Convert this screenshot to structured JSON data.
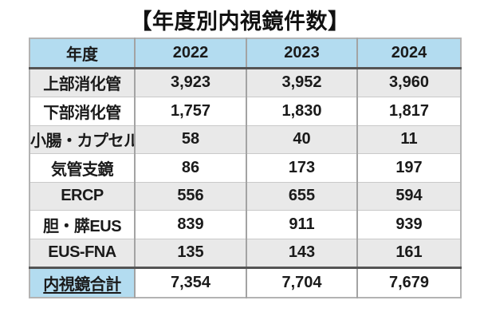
{
  "title": "【年度別内視鏡件数】",
  "colors": {
    "header_bg": "#b3dcf0",
    "alt_row_bg": "#e9e9e9",
    "heavy_rule": "#545454",
    "light_rule": "#c9c9c9",
    "text": "#1a1a1a"
  },
  "chart_data": {
    "type": "table",
    "title": "年度別内視鏡件数",
    "columns": [
      "年度",
      "2022",
      "2023",
      "2024"
    ],
    "rows": [
      {
        "label": "上部消化管",
        "values": [
          "3,923",
          "3,952",
          "3,960"
        ]
      },
      {
        "label": "下部消化管",
        "values": [
          "1,757",
          "1,830",
          "1,817"
        ]
      },
      {
        "label": "小腸・カプセル",
        "values": [
          "58",
          "40",
          "11"
        ]
      },
      {
        "label": "気管支鏡",
        "values": [
          "86",
          "173",
          "197"
        ]
      },
      {
        "label": "ERCP",
        "values": [
          "556",
          "655",
          "594"
        ]
      },
      {
        "label": "胆・膵EUS",
        "values": [
          "839",
          "911",
          "939"
        ]
      },
      {
        "label": "EUS-FNA",
        "values": [
          "135",
          "143",
          "161"
        ]
      },
      {
        "label": "内視鏡合計",
        "values": [
          "7,354",
          "7,704",
          "7,679"
        ],
        "is_total": true
      }
    ]
  }
}
